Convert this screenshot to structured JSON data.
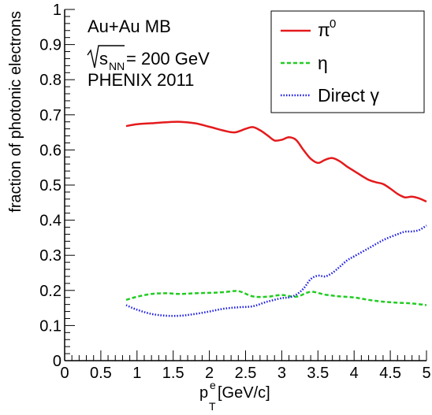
{
  "chart_data": {
    "type": "line",
    "xlabel": "p",
    "xlabel_sup": "e",
    "xlabel_sub": "T",
    "xlabel_unit": " [GeV/c]",
    "ylabel": "fraction of photonic electrons",
    "xlim": [
      0,
      5
    ],
    "ylim": [
      0,
      1
    ],
    "x_ticks": [
      "0",
      "0.5",
      "1",
      "1.5",
      "2",
      "2.5",
      "3",
      "3.5",
      "4",
      "4.5",
      "5"
    ],
    "y_ticks": [
      "0",
      "0.1",
      "0.2",
      "0.3",
      "0.4",
      "0.5",
      "0.6",
      "0.7",
      "0.8",
      "0.9",
      "1"
    ],
    "grid": false,
    "legend_position": "top-right",
    "annotation": {
      "line1": "Au+Au MB",
      "line2_s": "s",
      "line2_sub": "NN",
      "line2_rest": " = 200 GeV",
      "line3": "PHENIX 2011"
    },
    "series": [
      {
        "name": "π",
        "name_sup": "0",
        "color": "#e41a1c",
        "style": "solid",
        "x": [
          0.85,
          1.0,
          1.2,
          1.4,
          1.6,
          1.8,
          2.0,
          2.2,
          2.35,
          2.5,
          2.6,
          2.7,
          2.8,
          2.9,
          3.0,
          3.1,
          3.2,
          3.3,
          3.4,
          3.5,
          3.6,
          3.7,
          3.8,
          3.9,
          4.0,
          4.1,
          4.2,
          4.3,
          4.4,
          4.5,
          4.6,
          4.7,
          4.8,
          4.9,
          5.0
        ],
        "y": [
          0.668,
          0.673,
          0.676,
          0.679,
          0.68,
          0.676,
          0.666,
          0.655,
          0.65,
          0.66,
          0.665,
          0.656,
          0.642,
          0.627,
          0.629,
          0.636,
          0.628,
          0.6,
          0.575,
          0.563,
          0.572,
          0.577,
          0.568,
          0.553,
          0.54,
          0.527,
          0.515,
          0.508,
          0.503,
          0.49,
          0.475,
          0.465,
          0.467,
          0.462,
          0.453
        ]
      },
      {
        "name": "η",
        "color": "#22cc22",
        "style": "dashed",
        "x": [
          0.85,
          1.0,
          1.2,
          1.4,
          1.6,
          1.8,
          2.0,
          2.2,
          2.4,
          2.6,
          2.8,
          3.0,
          3.2,
          3.4,
          3.6,
          3.8,
          4.0,
          4.2,
          4.4,
          4.6,
          4.8,
          5.0
        ],
        "y": [
          0.173,
          0.182,
          0.19,
          0.192,
          0.19,
          0.192,
          0.193,
          0.195,
          0.198,
          0.183,
          0.182,
          0.187,
          0.182,
          0.196,
          0.188,
          0.183,
          0.18,
          0.173,
          0.168,
          0.165,
          0.163,
          0.158
        ]
      },
      {
        "name": "Direct γ",
        "color": "#1a1ae6",
        "style": "dotted",
        "x": [
          0.85,
          1.0,
          1.2,
          1.4,
          1.6,
          1.8,
          2.0,
          2.2,
          2.4,
          2.6,
          2.8,
          3.0,
          3.1,
          3.2,
          3.3,
          3.4,
          3.5,
          3.6,
          3.7,
          3.8,
          3.9,
          4.0,
          4.2,
          4.4,
          4.6,
          4.7,
          4.8,
          4.9,
          5.0
        ],
        "y": [
          0.158,
          0.145,
          0.133,
          0.128,
          0.128,
          0.133,
          0.14,
          0.148,
          0.152,
          0.155,
          0.168,
          0.178,
          0.18,
          0.188,
          0.205,
          0.232,
          0.242,
          0.24,
          0.25,
          0.267,
          0.285,
          0.297,
          0.32,
          0.343,
          0.36,
          0.367,
          0.368,
          0.372,
          0.385
        ]
      }
    ]
  }
}
